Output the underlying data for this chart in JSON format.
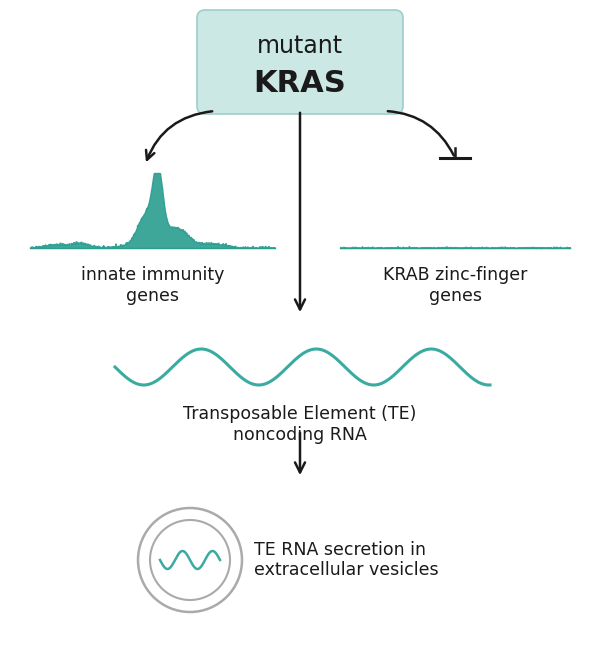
{
  "bg_color": "#ffffff",
  "teal_color": "#2a9d8f",
  "teal_light": "#3aaba0",
  "box_fill": "#cce8e4",
  "box_edge": "#9ececa",
  "gray_circle": "#aaaaaa",
  "text_color": "#1a1a1a",
  "title_line1": "mutant",
  "title_line2": "KRAS",
  "label_innate": "innate immunity\ngenes",
  "label_krab": "KRAB zinc-finger\ngenes",
  "label_te": "Transposable Element (TE)\nnoncoding RNA",
  "label_vesicle": "TE RNA secretion in\nextracellular vesicles",
  "figsize": [
    6.0,
    6.52
  ],
  "dpi": 100
}
